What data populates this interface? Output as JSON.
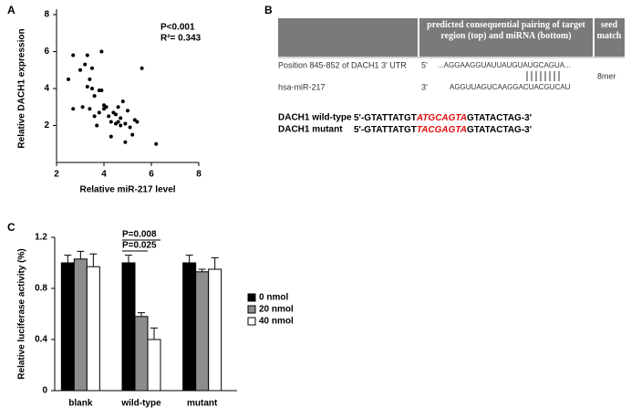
{
  "chart_data": [
    {
      "type": "scatter",
      "panel_label": "A",
      "x_label": "Relative miR-217 level",
      "y_label": "Relative DACH1 expression",
      "annotations": [
        "P<0.001",
        "R²= 0.343"
      ],
      "color": "#000000",
      "x": [
        2.5,
        2.7,
        2.7,
        3.0,
        3.1,
        3.2,
        3.3,
        3.3,
        3.4,
        3.4,
        3.5,
        3.5,
        3.6,
        3.6,
        3.7,
        3.8,
        3.9,
        3.9,
        4.0,
        4.0,
        4.1,
        4.2,
        4.3,
        4.3,
        4.4,
        4.5,
        4.5,
        4.6,
        4.7,
        4.7,
        4.8,
        4.9,
        4.9,
        5.0,
        5.1,
        5.2,
        5.3,
        5.4,
        5.6,
        6.2,
        3.8,
        4.6
      ],
      "y": [
        4.5,
        5.8,
        2.9,
        5.0,
        3.0,
        5.3,
        5.8,
        4.1,
        4.5,
        2.9,
        4.0,
        5.1,
        3.6,
        2.5,
        2.0,
        3.9,
        6.0,
        3.9,
        3.1,
        2.9,
        3.0,
        2.5,
        2.2,
        1.4,
        2.7,
        2.6,
        2.1,
        2.2,
        2.0,
        2.4,
        3.3,
        1.1,
        2.1,
        2.8,
        1.9,
        1.5,
        2.3,
        2.2,
        5.1,
        1.0,
        2.7,
        3.0
      ],
      "xlim": [
        2,
        8
      ],
      "xticks": [
        2,
        4,
        6,
        8
      ],
      "ylim": [
        0,
        8
      ],
      "yticks": [
        2,
        4,
        6,
        8
      ]
    },
    {
      "type": "bar",
      "panel_label": "C",
      "y_label": "Relative luciferase activity (%)",
      "categories": [
        "blank",
        "wild-type",
        "mutant"
      ],
      "series": [
        {
          "name": "0 nmol",
          "color": "#000000",
          "values": [
            1.0,
            1.0,
            1.0
          ],
          "errors": [
            0.06,
            0.06,
            0.06
          ]
        },
        {
          "name": "20 nmol",
          "color": "#8c8c8c",
          "values": [
            1.03,
            0.58,
            0.93
          ],
          "errors": [
            0.06,
            0.03,
            0.02
          ]
        },
        {
          "name": "40 nmol",
          "color": "#ffffff",
          "values": [
            0.97,
            0.4,
            0.95
          ],
          "errors": [
            0.1,
            0.09,
            0.09
          ]
        }
      ],
      "annotations": [
        "P=0.008",
        "P=0.025"
      ],
      "ylim": [
        0,
        1.2
      ],
      "yticks": [
        0,
        0.4,
        0.8,
        1.2
      ]
    }
  ],
  "panel_b": {
    "panel_label": "B",
    "header": [
      "predicted consequential pairing of target region (top) and miRNA (bottom)",
      "seed match"
    ],
    "rows": [
      [
        "Position 845-852 of DACH1 3' UTR",
        "5'",
        "...AGGAAGGUAUUAUGUAUGCAGUA...",
        "8mer"
      ],
      [
        "hsa-miR-217",
        "3'",
        "AGGUUAGUCAAGGACUACGUCAU"
      ]
    ],
    "sequences": [
      [
        "DACH1 wild-type",
        "5'-GTATTATGT",
        "ATGCAGTA",
        "GTATACTAG-3'"
      ],
      [
        "DACH1 mutant",
        "5'-GTATTATGT",
        "TACGAGTA",
        "GTATACTAG-3'"
      ]
    ]
  }
}
